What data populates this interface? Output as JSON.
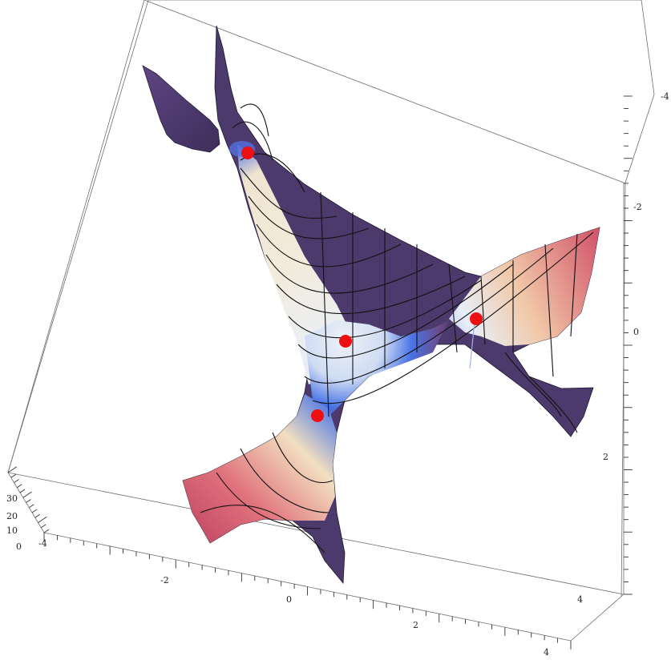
{
  "chart_data": {
    "type": "surface3d",
    "title": "",
    "x_axis": {
      "ticks": [
        "-4",
        "-2",
        "0",
        "2",
        "4"
      ]
    },
    "y_axis": {
      "ticks": [
        "-4",
        "-2",
        "0",
        "2",
        "4"
      ]
    },
    "z_axis": {
      "ticks": [
        "0",
        "10",
        "20",
        "30"
      ]
    },
    "critical_points": 4,
    "colors": {
      "dark": "#4c3868",
      "violet": "#6a4a88",
      "blue": "#4a78e8",
      "light": "#eef1f6",
      "cream": "#f2e2c0",
      "rose": "#c8506a",
      "pink": "#e58a88",
      "point": "#ee1010"
    }
  }
}
